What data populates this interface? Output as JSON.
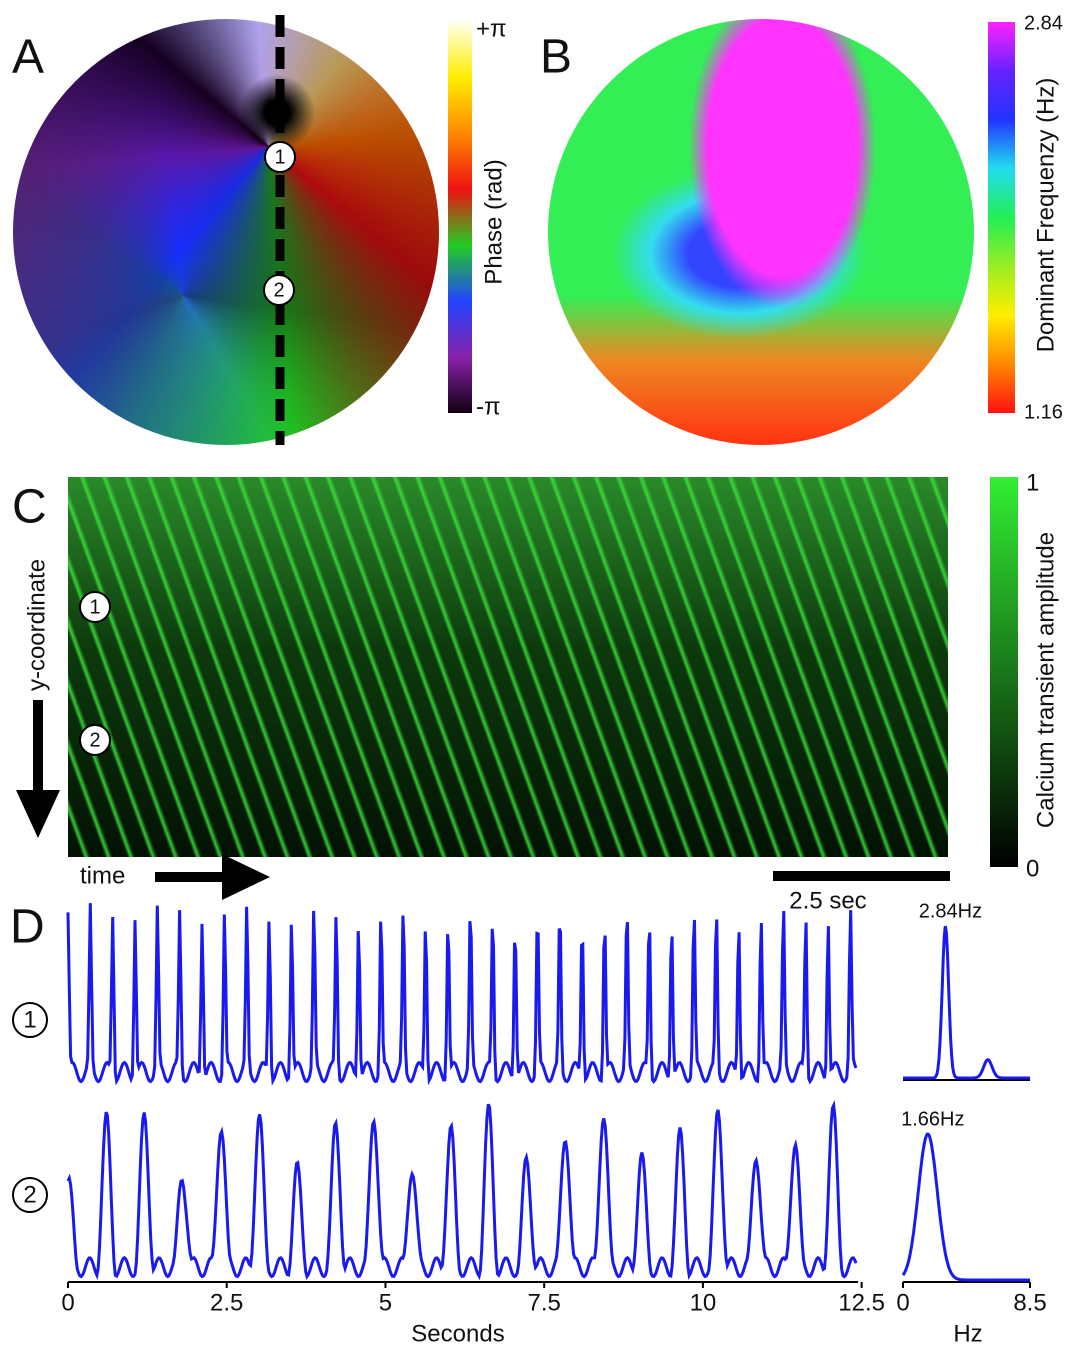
{
  "panels": {
    "A": {
      "label": "A",
      "markers": [
        "1",
        "2"
      ],
      "colorbar": {
        "max": "+π",
        "min": "-π",
        "title": "Phase (rad)"
      }
    },
    "B": {
      "label": "B",
      "colorbar": {
        "max": 2.84,
        "min": 1.16,
        "title": "Dominant Frequenzy (Hz)"
      }
    },
    "C": {
      "label": "C",
      "markers": [
        "1",
        "2"
      ],
      "colorbar": {
        "max": 1,
        "min": 0,
        "title": "Calcium transient amplitude"
      },
      "y_axis": "y-coordinate",
      "x_axis": "time",
      "scale_bar": "2.5 sec"
    },
    "D": {
      "label": "D",
      "traces": [
        {
          "marker": "1",
          "peak": {
            "value": 2.84,
            "label": "2.84Hz"
          }
        },
        {
          "marker": "2",
          "peak": {
            "value": 1.66,
            "label": "1.66Hz"
          }
        }
      ],
      "xlim": [
        0,
        12.6
      ],
      "xticks": [
        0,
        2.5,
        5,
        7.5,
        10,
        12.5
      ],
      "xlabel": "Seconds",
      "spectrum_xlim": [
        0,
        8.5
      ],
      "spectrum_xticks": [
        0,
        8.5
      ],
      "spectrum_xlabel": "Hz"
    }
  }
}
